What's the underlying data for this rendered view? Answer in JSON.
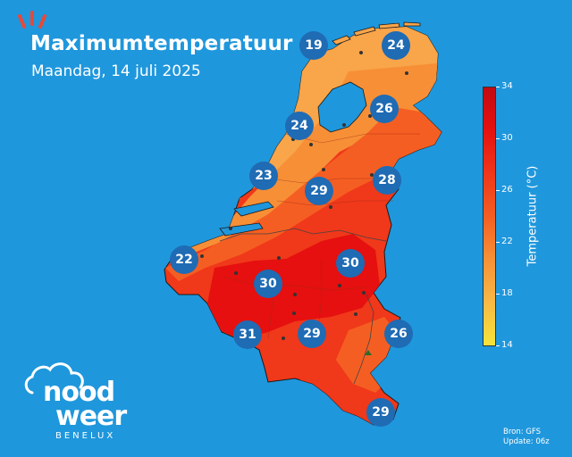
{
  "header": {
    "title": "Maximumtemperatuur",
    "subtitle": "Maandag, 14 juli 2025"
  },
  "colorbar": {
    "label": "Temperatuur (°C)",
    "ticks": [
      "34",
      "30",
      "26",
      "22",
      "18",
      "14"
    ],
    "min": 14,
    "max": 34
  },
  "cities": [
    {
      "temp": "19"
    },
    {
      "temp": "24"
    },
    {
      "temp": "26"
    },
    {
      "temp": "24"
    },
    {
      "temp": "23"
    },
    {
      "temp": "29"
    },
    {
      "temp": "28"
    },
    {
      "temp": "22"
    },
    {
      "temp": "30"
    },
    {
      "temp": "30"
    },
    {
      "temp": "31"
    },
    {
      "temp": "29"
    },
    {
      "temp": "26"
    },
    {
      "temp": "29"
    }
  ],
  "logo": {
    "word1": "nood",
    "word2": "weer",
    "sub": "BENELUX"
  },
  "source": {
    "line1": "Bron: GFS",
    "line2": "Update: 06z"
  },
  "colors": {
    "sea": "#1f97dc",
    "badge": "#1f6bb4",
    "hot": "#e5100f",
    "warm": "#f0381a",
    "mild": "#f78f36"
  }
}
